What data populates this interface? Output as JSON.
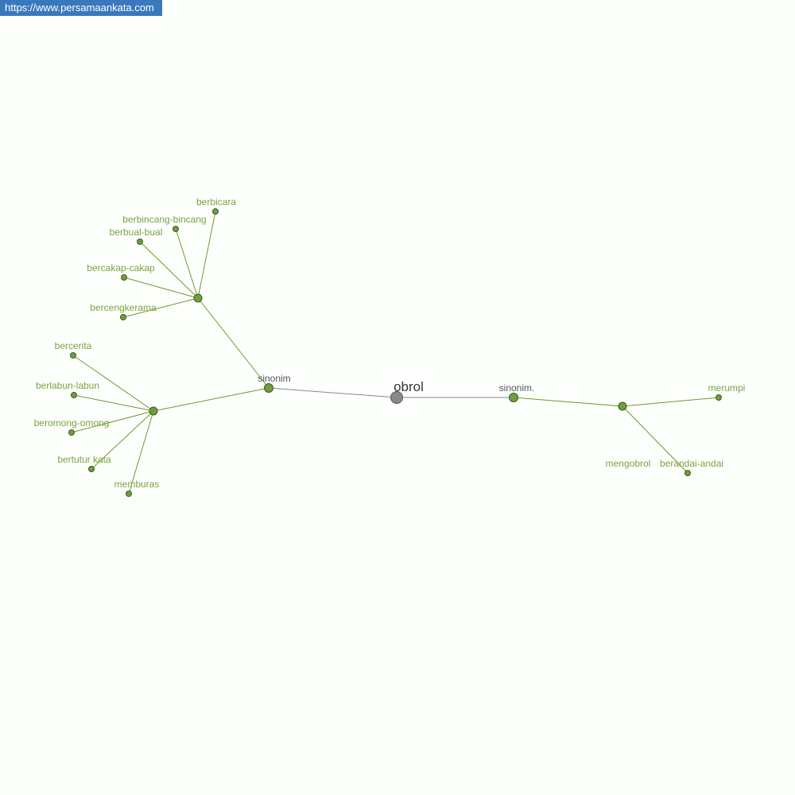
{
  "site_badge": "https://www.persamaankata.com",
  "colors": {
    "edge_green": "#6f9a2a",
    "edge_gray": "#888888",
    "node_green": "#6f9f3c",
    "node_gray": "#888888",
    "label_green": "#7aa33a",
    "badge_bg": "#3a78bd"
  },
  "graph": {
    "root": {
      "id": "obrol",
      "label": "obrol"
    },
    "nodes": [
      {
        "id": "s1",
        "label": "sinonim",
        "parent": "obrol"
      },
      {
        "id": "s2",
        "label": "sinonim.",
        "parent": "obrol"
      },
      {
        "id": "h1",
        "label": "",
        "parent": "s1"
      },
      {
        "id": "h2",
        "label": "",
        "parent": "s1"
      },
      {
        "id": "h3",
        "label": "mengobrol",
        "parent": "s2"
      },
      {
        "id": "l1",
        "label": "berbicara",
        "parent": "h1"
      },
      {
        "id": "l2",
        "label": "berbincang-bincang",
        "parent": "h1"
      },
      {
        "id": "l3",
        "label": "berbual-bual",
        "parent": "h1"
      },
      {
        "id": "l4",
        "label": "bercakap-cakap",
        "parent": "h1"
      },
      {
        "id": "l5",
        "label": "bercengkerama",
        "parent": "h1"
      },
      {
        "id": "l6",
        "label": "bercerita",
        "parent": "h2"
      },
      {
        "id": "l7",
        "label": "berlabun-labun",
        "parent": "h2"
      },
      {
        "id": "l8",
        "label": "beromong-omong",
        "parent": "h2"
      },
      {
        "id": "l9",
        "label": "bertutur kata",
        "parent": "h2"
      },
      {
        "id": "l10",
        "label": "memburas",
        "parent": "h2"
      },
      {
        "id": "l11",
        "label": "merumpi",
        "parent": "h3"
      },
      {
        "id": "l12",
        "label": "berandai-andai",
        "parent": "h3"
      }
    ]
  }
}
